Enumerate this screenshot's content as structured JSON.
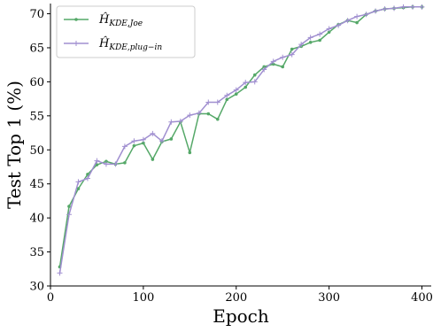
{
  "chart_data": {
    "type": "line",
    "xlabel": "Epoch",
    "ylabel": "Test Top 1 (%)",
    "xlim": [
      0,
      410
    ],
    "ylim": [
      30,
      71.5
    ],
    "xticks": [
      0,
      100,
      200,
      300,
      400
    ],
    "yticks": [
      30,
      35,
      40,
      45,
      50,
      55,
      60,
      65,
      70
    ],
    "grid": false,
    "legend_position": "top-left",
    "series": [
      {
        "name": "Ĥ_KDE,Joe",
        "legend_main": "Ĥ",
        "legend_sub": "KDE,Joe",
        "color": "#55a868",
        "marker": "dot",
        "x": [
          10,
          20,
          30,
          40,
          50,
          60,
          70,
          80,
          90,
          100,
          110,
          120,
          130,
          140,
          150,
          160,
          170,
          180,
          190,
          200,
          210,
          220,
          230,
          240,
          250,
          260,
          270,
          280,
          290,
          300,
          310,
          320,
          330,
          340,
          350,
          360,
          370,
          380,
          390,
          400
        ],
        "y": [
          32.8,
          41.7,
          44.3,
          46.4,
          47.8,
          48.3,
          47.9,
          48.1,
          50.6,
          51.0,
          48.6,
          51.2,
          51.6,
          54.1,
          49.6,
          55.3,
          55.3,
          54.5,
          57.4,
          58.2,
          59.2,
          61.0,
          62.2,
          62.6,
          62.2,
          64.8,
          65.2,
          65.8,
          66.1,
          67.3,
          68.4,
          69.0,
          68.7,
          69.9,
          70.4,
          70.7,
          70.8,
          70.9,
          71.0,
          71.0
        ]
      },
      {
        "name": "Ĥ_KDE,plug-in",
        "legend_main": "Ĥ",
        "legend_sub": "KDE,plug−in",
        "color": "#a08fd0",
        "marker": "plus",
        "x": [
          10,
          20,
          30,
          40,
          50,
          60,
          70,
          80,
          90,
          100,
          110,
          120,
          130,
          140,
          150,
          160,
          170,
          180,
          190,
          200,
          210,
          220,
          230,
          240,
          250,
          260,
          270,
          280,
          290,
          300,
          310,
          320,
          330,
          340,
          350,
          360,
          370,
          380,
          390,
          400
        ],
        "y": [
          31.9,
          40.5,
          45.3,
          45.8,
          48.4,
          47.9,
          47.9,
          50.5,
          51.3,
          51.5,
          52.4,
          51.3,
          54.1,
          54.2,
          55.1,
          55.4,
          57.0,
          57.0,
          58.0,
          58.8,
          59.9,
          60.0,
          61.8,
          63.0,
          63.6,
          64.0,
          65.5,
          66.5,
          67.0,
          67.8,
          68.3,
          69.0,
          69.6,
          69.9,
          70.4,
          70.7,
          70.8,
          71.0,
          71.0,
          71.0
        ]
      }
    ]
  }
}
